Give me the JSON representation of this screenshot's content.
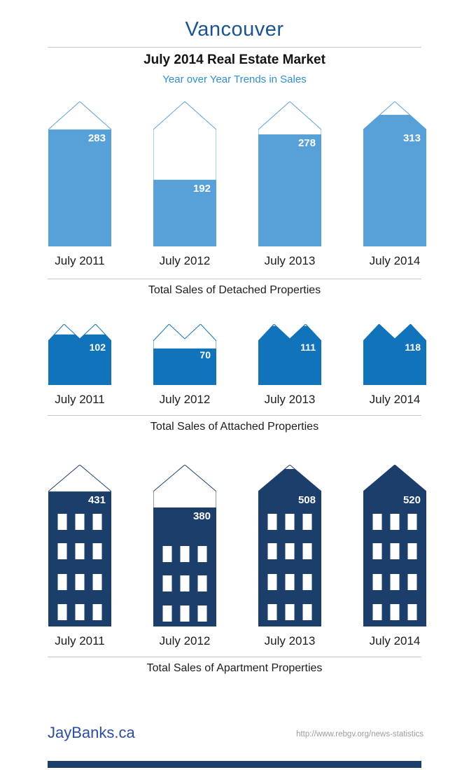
{
  "header": {
    "city": "Vancouver",
    "title": "July 2014 Real Estate Market",
    "subtitle": "Year over Year Trends in Sales"
  },
  "colors": {
    "detached_blue": "#58A1D8",
    "attached_blue": "#1173B9",
    "apartment_navy": "#1C3E6B",
    "city_title_blue": "#1B5591",
    "subtitle_blue": "#2F8FD0",
    "divider_gray": "#C9C9C9",
    "brand_blue": "#2C4EA2",
    "url_gray": "#9C9C9C",
    "value_text": "#FFFFFF"
  },
  "chart_data": [
    {
      "type": "bar",
      "pictogram": "house",
      "title": "Total Sales of Detached Properties",
      "categories": [
        "July 2011",
        "July 2012",
        "July 2013",
        "July 2014"
      ],
      "values": [
        283,
        192,
        278,
        313
      ],
      "ylim": [
        0,
        350
      ],
      "fill_pct": [
        0.807,
        0.46,
        0.773,
        0.908
      ],
      "color": "#58A1D8"
    },
    {
      "type": "bar",
      "pictogram": "townhouse",
      "title": "Total Sales of Attached Properties",
      "categories": [
        "July 2011",
        "July 2012",
        "July 2013",
        "July 2014"
      ],
      "values": [
        102,
        70,
        111,
        118
      ],
      "ylim": [
        0,
        118
      ],
      "fill_pct": [
        0.83,
        0.6,
        0.97,
        1.0
      ],
      "color": "#1173B9"
    },
    {
      "type": "bar",
      "pictogram": "apartment",
      "title": "Total Sales of Apartment Properties",
      "categories": [
        "July 2011",
        "July 2012",
        "July 2013",
        "July 2014"
      ],
      "values": [
        431,
        380,
        508,
        520
      ],
      "ylim": [
        0,
        520
      ],
      "fill_pct": [
        0.835,
        0.736,
        0.974,
        1.0
      ],
      "window_rows": [
        4,
        3,
        4,
        4
      ],
      "color": "#1C3E6B"
    }
  ],
  "footer": {
    "brand": "JayBanks.ca",
    "source_url": "http://www.rebgv.org/news-statistics"
  }
}
